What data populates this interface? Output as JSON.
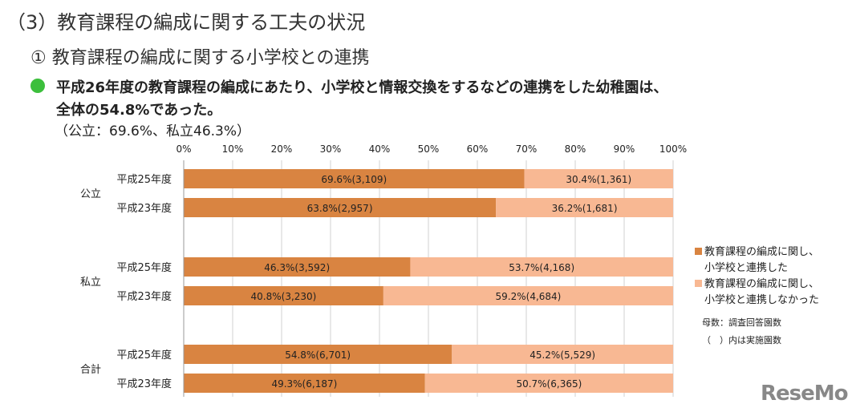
{
  "header": {
    "title": "（3）教育課程の編成に関する工夫の状況",
    "subtitle": "① 教育課程の編成に関する小学校との連携",
    "summary_line1": "平成26年度の教育課程の編成にあたり、小学校と情報交換をするなどの連携をした幼稚園は、",
    "summary_line2": "全体の54.8%であった。",
    "summary_line3": "（公立：69.6%、私立46.3%）"
  },
  "chart_data": {
    "type": "bar",
    "orientation": "horizontal",
    "stacked": true,
    "xlim": [
      0,
      100
    ],
    "xticks": [
      "0%",
      "10%",
      "20%",
      "30%",
      "40%",
      "50%",
      "60%",
      "70%",
      "80%",
      "90%",
      "100%"
    ],
    "groups": [
      {
        "name": "公立",
        "rows": [
          {
            "label": "平成25年度",
            "values": [
              69.6,
              30.4
            ],
            "labels": [
              "69.6%(3,109)",
              "30.4%(1,361)"
            ]
          },
          {
            "label": "平成23年度",
            "values": [
              63.8,
              36.2
            ],
            "labels": [
              "63.8%(2,957)",
              "36.2%(1,681)"
            ]
          }
        ]
      },
      {
        "name": "私立",
        "rows": [
          {
            "label": "平成25年度",
            "values": [
              46.3,
              53.7
            ],
            "labels": [
              "46.3%(3,592)",
              "53.7%(4,168)"
            ]
          },
          {
            "label": "平成23年度",
            "values": [
              40.8,
              59.2
            ],
            "labels": [
              "40.8%(3,230)",
              "59.2%(4,684)"
            ]
          }
        ]
      },
      {
        "name": "合計",
        "rows": [
          {
            "label": "平成25年度",
            "values": [
              54.8,
              45.2
            ],
            "labels": [
              "54.8%(6,701)",
              "45.2%(5,529)"
            ]
          },
          {
            "label": "平成23年度",
            "values": [
              49.3,
              50.7
            ],
            "labels": [
              "49.3%(6,187)",
              "50.7%(6,365)"
            ]
          }
        ]
      }
    ],
    "series": [
      {
        "name": "教育課程の編成に関し、小学校と連携した",
        "name_l1": "教育課程の編成に関し、",
        "name_l2": "小学校と連携した",
        "color": "#d98441"
      },
      {
        "name": "教育課程の編成に関し、小学校と連携しなかった",
        "name_l1": "教育課程の編成に関し、",
        "name_l2": "小学校と連携しなかった",
        "color": "#f8b893"
      }
    ],
    "legend_position": "right",
    "grid": true
  },
  "notes": {
    "n1": "母数：調査回答園数",
    "n2": "（　）内は実施園数"
  },
  "logo": "ReseMom"
}
